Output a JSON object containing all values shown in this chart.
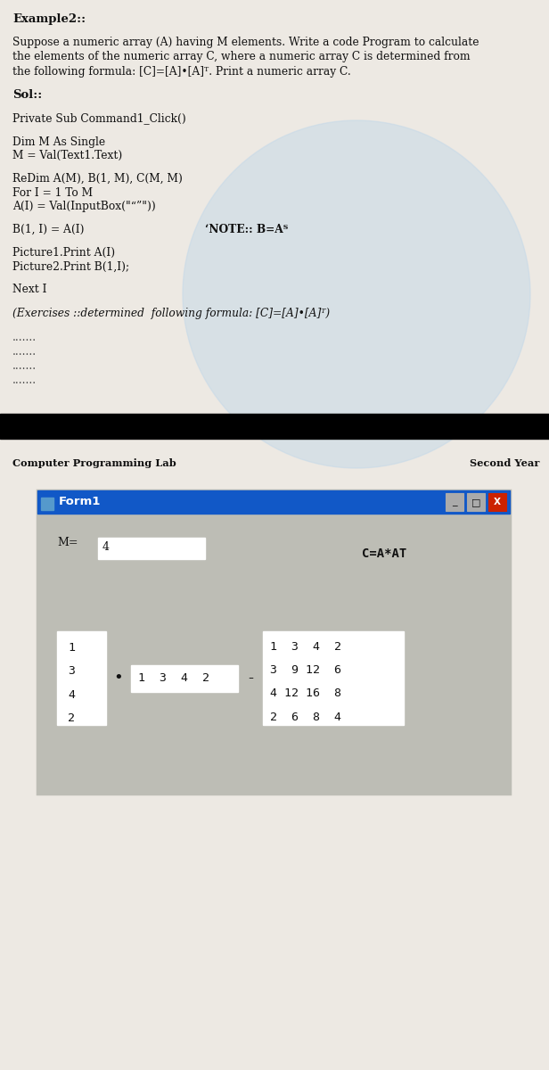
{
  "page_bg": "#ede9e3",
  "watermark_color": "#c5d9e8",
  "title_text": "Example2::",
  "paragraph1_lines": [
    "Suppose a numeric array (A) having M elements. Write a code Program to calculate",
    "the elements of the numeric array C, where a numeric array C is determined from",
    "the following formula: [C]=[A]•[A]ᵀ. Print a numeric array C."
  ],
  "sol_label": "Sol::",
  "black_bar_color": "#000000",
  "footer_left": "Computer Programming Lab",
  "footer_right": "Second Year",
  "form_title": "Form1",
  "form_bg": "#bdbdb5",
  "form_title_bg": "#1158c7",
  "form_title_color": "#ffffff",
  "m_label": "M=",
  "m_value": "4",
  "button_text": "C=A*AT",
  "col_vector": [
    "1",
    "3",
    "4",
    "2"
  ],
  "row_vector": "1  3  4  2",
  "matrix_lines": [
    "1  3  4  2",
    "3  9 12  6",
    "4 12 16  8",
    "2  6  8  4"
  ],
  "multiply_dot": "•",
  "equals_dash": "-"
}
